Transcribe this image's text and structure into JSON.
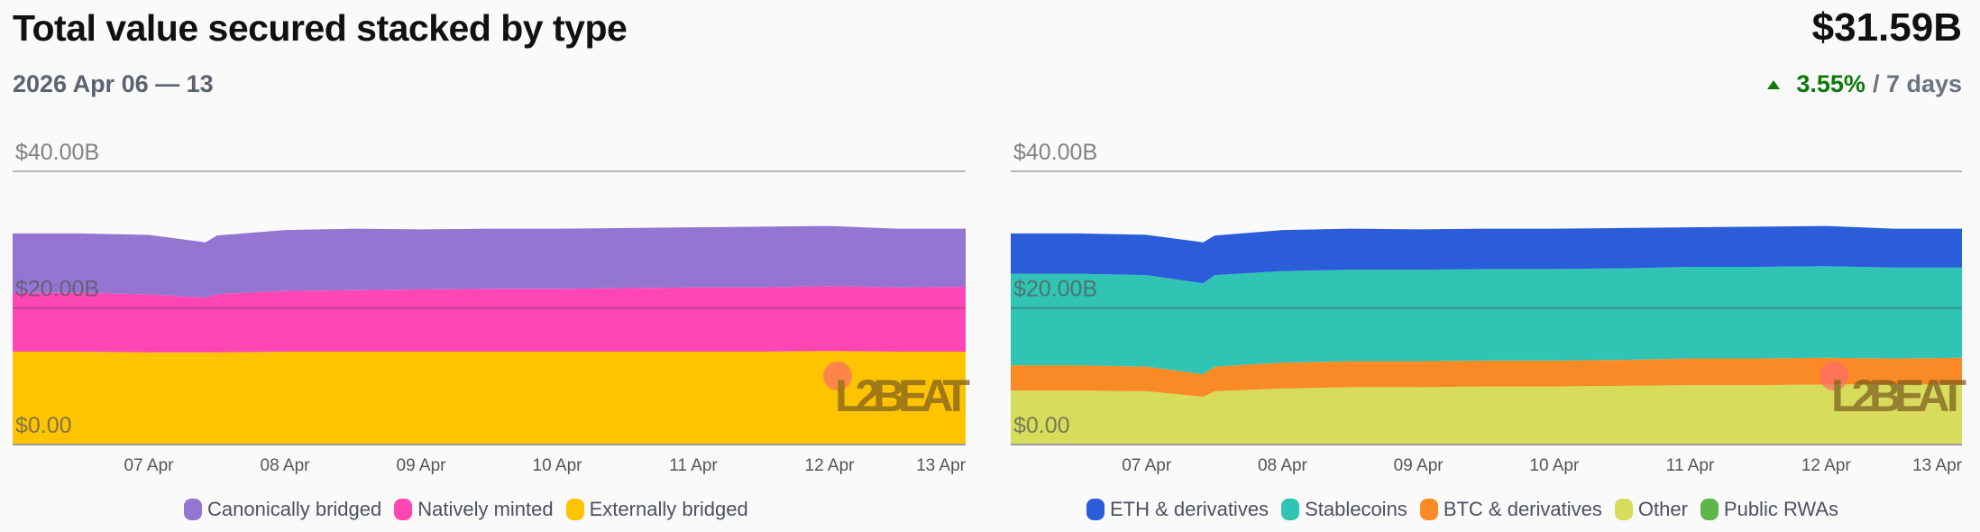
{
  "header": {
    "title": "Total value secured stacked by type",
    "date_range": "2026 Apr 06 — 13",
    "total_value": "$31.59B",
    "change_pct": "3.55%",
    "change_period": "/ 7 days",
    "change_direction": "up",
    "change_color": "#0b7a0b"
  },
  "watermark": "L2BEAT",
  "chart_data": [
    {
      "type": "area",
      "stacked": true,
      "x": [
        "2026-04-06T00:00",
        "2026-04-06T12:00",
        "2026-04-07T00:00",
        "2026-04-07T10:00",
        "2026-04-07T12:00",
        "2026-04-08T00:00",
        "2026-04-08T12:00",
        "2026-04-09T00:00",
        "2026-04-09T12:00",
        "2026-04-10T00:00",
        "2026-04-10T12:00",
        "2026-04-11T00:00",
        "2026-04-11T12:00",
        "2026-04-12T00:00",
        "2026-04-12T12:00",
        "2026-04-13T00:00"
      ],
      "xticks": [
        "07 Apr",
        "08 Apr",
        "09 Apr",
        "10 Apr",
        "11 Apr",
        "12 Apr",
        "13 Apr"
      ],
      "yticks": [
        "$0.00",
        "$20.00B",
        "$40.00B"
      ],
      "ylim": [
        0,
        40
      ],
      "yunit": "billion USD",
      "grid": true,
      "legend_position": "bottom",
      "series": [
        {
          "name": "Canonically bridged",
          "color": "#9575d2",
          "values": [
            8.7,
            8.7,
            8.7,
            8.1,
            8.6,
            8.9,
            9.0,
            8.8,
            8.8,
            8.8,
            8.8,
            8.8,
            8.9,
            8.8,
            8.6,
            8.5
          ]
        },
        {
          "name": "Natively minted",
          "color": "#ff46b4",
          "values": [
            8.6,
            8.6,
            8.5,
            8.0,
            8.5,
            8.9,
            9.0,
            9.1,
            9.2,
            9.2,
            9.3,
            9.4,
            9.4,
            9.5,
            9.4,
            9.5
          ]
        },
        {
          "name": "Externally bridged",
          "color": "#ffc400",
          "values": [
            13.6,
            13.6,
            13.5,
            13.5,
            13.5,
            13.6,
            13.6,
            13.6,
            13.6,
            13.6,
            13.6,
            13.6,
            13.6,
            13.7,
            13.6,
            13.6
          ]
        }
      ]
    },
    {
      "type": "area",
      "stacked": true,
      "x": [
        "2026-04-06T00:00",
        "2026-04-06T12:00",
        "2026-04-07T00:00",
        "2026-04-07T10:00",
        "2026-04-07T12:00",
        "2026-04-08T00:00",
        "2026-04-08T12:00",
        "2026-04-09T00:00",
        "2026-04-09T12:00",
        "2026-04-10T00:00",
        "2026-04-10T12:00",
        "2026-04-11T00:00",
        "2026-04-11T12:00",
        "2026-04-12T00:00",
        "2026-04-12T12:00",
        "2026-04-13T00:00"
      ],
      "xticks": [
        "07 Apr",
        "08 Apr",
        "09 Apr",
        "10 Apr",
        "11 Apr",
        "12 Apr",
        "13 Apr"
      ],
      "yticks": [
        "$0.00",
        "$20.00B",
        "$40.00B"
      ],
      "ylim": [
        0,
        40
      ],
      "yunit": "billion USD",
      "grid": true,
      "legend_position": "bottom",
      "series": [
        {
          "name": "ETH & derivatives",
          "color": "#2b5cd9",
          "values": [
            5.9,
            5.9,
            5.9,
            6.0,
            5.8,
            6.0,
            6.0,
            5.9,
            5.9,
            5.9,
            5.9,
            5.8,
            5.9,
            5.9,
            5.7,
            5.7
          ]
        },
        {
          "name": "Stablecoins",
          "color": "#30c4b5",
          "values": [
            13.4,
            13.4,
            13.4,
            13.3,
            13.4,
            13.4,
            13.4,
            13.4,
            13.4,
            13.4,
            13.4,
            13.4,
            13.4,
            13.4,
            13.3,
            13.2
          ]
        },
        {
          "name": "BTC & derivatives",
          "color": "#f98a25",
          "values": [
            3.7,
            3.7,
            3.6,
            3.3,
            3.6,
            3.8,
            3.8,
            3.8,
            3.8,
            3.8,
            3.8,
            3.9,
            3.9,
            3.9,
            3.8,
            3.9
          ]
        },
        {
          "name": "Other",
          "color": "#d7dc5a",
          "values": [
            7.8,
            7.8,
            7.7,
            6.9,
            7.7,
            8.1,
            8.3,
            8.3,
            8.4,
            8.4,
            8.5,
            8.6,
            8.6,
            8.7,
            8.7,
            8.7
          ]
        },
        {
          "name": "Public RWAs",
          "color": "#5eb649",
          "values": [
            0.1,
            0.1,
            0.1,
            0.1,
            0.1,
            0.1,
            0.1,
            0.1,
            0.1,
            0.1,
            0.1,
            0.1,
            0.1,
            0.1,
            0.1,
            0.1
          ]
        }
      ]
    }
  ]
}
